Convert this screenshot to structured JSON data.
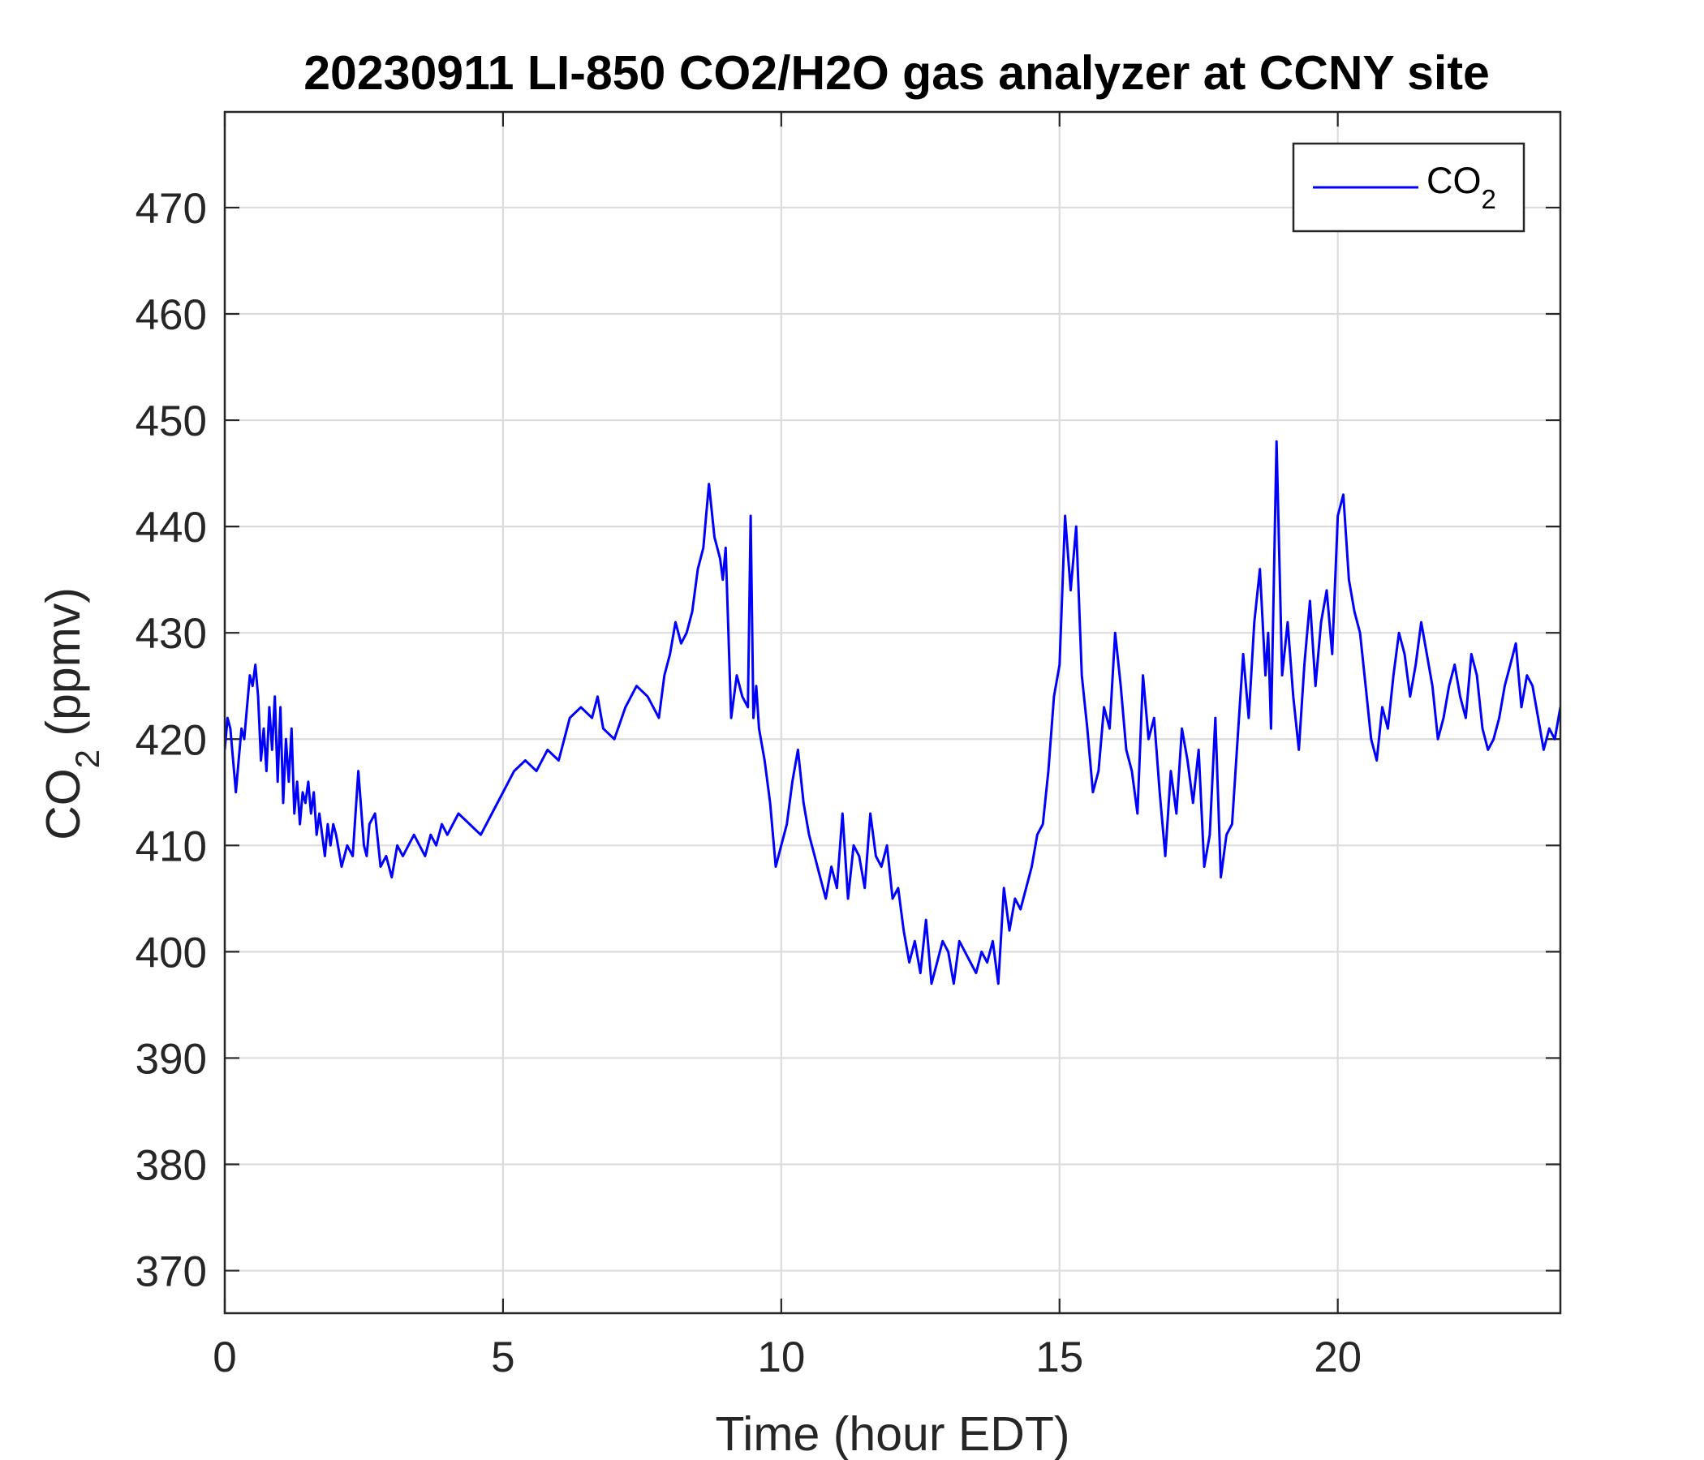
{
  "chart_data": {
    "type": "line",
    "title": "20230911 LI-850 CO2/H2O gas analyzer at CCNY site",
    "xlabel": "Time (hour EDT)",
    "ylabel": {
      "main": "CO",
      "sub": "2",
      "suffix": " (ppmv)"
    },
    "xlim": [
      0,
      24
    ],
    "ylim": [
      366,
      479
    ],
    "xticks": [
      0,
      5,
      10,
      15,
      20
    ],
    "yticks": [
      370,
      380,
      390,
      400,
      410,
      420,
      430,
      440,
      450,
      460,
      470
    ],
    "grid": true,
    "legend_position": "top-right",
    "colors": {
      "line": "#0000ff",
      "axes": "#262626",
      "grid": "#dcdcdc"
    },
    "series": [
      {
        "name": {
          "main": "CO",
          "sub": "2"
        },
        "x": [
          0.0,
          0.05,
          0.1,
          0.15,
          0.2,
          0.25,
          0.3,
          0.35,
          0.4,
          0.45,
          0.5,
          0.55,
          0.6,
          0.65,
          0.7,
          0.75,
          0.8,
          0.85,
          0.9,
          0.95,
          1.0,
          1.05,
          1.1,
          1.15,
          1.2,
          1.25,
          1.3,
          1.35,
          1.4,
          1.45,
          1.5,
          1.55,
          1.6,
          1.65,
          1.7,
          1.75,
          1.8,
          1.85,
          1.9,
          1.95,
          2.0,
          2.1,
          2.2,
          2.3,
          2.4,
          2.5,
          2.55,
          2.6,
          2.7,
          2.8,
          2.9,
          3.0,
          3.1,
          3.2,
          3.3,
          3.4,
          3.5,
          3.6,
          3.7,
          3.8,
          3.9,
          4.0,
          4.2,
          4.4,
          4.6,
          4.8,
          5.0,
          5.2,
          5.4,
          5.6,
          5.8,
          6.0,
          6.1,
          6.2,
          6.4,
          6.6,
          6.7,
          6.8,
          7.0,
          7.2,
          7.4,
          7.6,
          7.7,
          7.8,
          7.9,
          8.0,
          8.1,
          8.2,
          8.3,
          8.4,
          8.5,
          8.6,
          8.65,
          8.7,
          8.8,
          8.9,
          8.95,
          9.0,
          9.1,
          9.2,
          9.3,
          9.4,
          9.45,
          9.5,
          9.55,
          9.6,
          9.7,
          9.8,
          9.9,
          10.0,
          10.1,
          10.2,
          10.3,
          10.4,
          10.5,
          10.6,
          10.7,
          10.8,
          10.9,
          11.0,
          11.1,
          11.2,
          11.3,
          11.4,
          11.5,
          11.6,
          11.7,
          11.8,
          11.9,
          12.0,
          12.1,
          12.2,
          12.3,
          12.4,
          12.5,
          12.6,
          12.7,
          12.8,
          12.9,
          13.0,
          13.1,
          13.2,
          13.3,
          13.4,
          13.5,
          13.6,
          13.7,
          13.8,
          13.9,
          14.0,
          14.1,
          14.2,
          14.3,
          14.4,
          14.5,
          14.6,
          14.7,
          14.8,
          14.9,
          15.0,
          15.1,
          15.2,
          15.3,
          15.4,
          15.5,
          15.6,
          15.7,
          15.8,
          15.9,
          16.0,
          16.1,
          16.2,
          16.3,
          16.4,
          16.5,
          16.6,
          16.7,
          16.8,
          16.9,
          17.0,
          17.1,
          17.2,
          17.3,
          17.4,
          17.5,
          17.6,
          17.7,
          17.8,
          17.9,
          18.0,
          18.1,
          18.2,
          18.3,
          18.4,
          18.5,
          18.6,
          18.7,
          18.75,
          18.8,
          18.9,
          19.0,
          19.1,
          19.2,
          19.3,
          19.4,
          19.5,
          19.6,
          19.7,
          19.8,
          19.9,
          20.0,
          20.1,
          20.2,
          20.3,
          20.4,
          20.5,
          20.6,
          20.7,
          20.8,
          20.9,
          21.0,
          21.1,
          21.2,
          21.3,
          21.4,
          21.5,
          21.6,
          21.7,
          21.8,
          21.9,
          22.0,
          22.1,
          22.2,
          22.3,
          22.4,
          22.5,
          22.6,
          22.7,
          22.8,
          22.9,
          23.0,
          23.1,
          23.2,
          23.3,
          23.4,
          23.5,
          23.6,
          23.7,
          23.8,
          23.9,
          24.0
        ],
        "y": [
          419,
          422,
          421,
          418,
          415,
          418,
          421,
          420,
          423,
          426,
          425,
          427,
          424,
          418,
          421,
          417,
          423,
          419,
          424,
          416,
          423,
          414,
          420,
          416,
          421,
          413,
          416,
          412,
          415,
          414,
          416,
          413,
          415,
          411,
          413,
          411,
          409,
          412,
          410,
          412,
          411,
          408,
          410,
          409,
          417,
          410,
          409,
          412,
          413,
          408,
          409,
          407,
          410,
          409,
          410,
          411,
          410,
          409,
          411,
          410,
          412,
          411,
          413,
          412,
          411,
          413,
          415,
          417,
          418,
          417,
          419,
          418,
          420,
          422,
          423,
          422,
          424,
          421,
          420,
          423,
          425,
          424,
          423,
          422,
          426,
          428,
          431,
          429,
          430,
          432,
          436,
          438,
          441,
          444,
          439,
          437,
          435,
          438,
          422,
          426,
          424,
          423,
          441,
          422,
          425,
          421,
          418,
          414,
          408,
          410,
          412,
          416,
          419,
          414,
          411,
          409,
          407,
          405,
          408,
          406,
          413,
          405,
          410,
          409,
          406,
          413,
          409,
          408,
          410,
          405,
          406,
          402,
          399,
          401,
          398,
          403,
          397,
          399,
          401,
          400,
          397,
          401,
          400,
          399,
          398,
          400,
          399,
          401,
          397,
          406,
          402,
          405,
          404,
          406,
          408,
          411,
          412,
          417,
          424,
          427,
          441,
          434,
          440,
          426,
          421,
          415,
          417,
          423,
          421,
          430,
          425,
          419,
          417,
          413,
          426,
          420,
          422,
          415,
          409,
          417,
          413,
          421,
          418,
          414,
          419,
          408,
          411,
          422,
          407,
          411,
          412,
          420,
          428,
          422,
          431,
          436,
          426,
          430,
          421,
          448,
          426,
          431,
          424,
          419,
          427,
          433,
          425,
          431,
          434,
          428,
          441,
          443,
          435,
          432,
          430,
          425,
          420,
          418,
          423,
          421,
          426,
          430,
          428,
          424,
          427,
          431,
          428,
          425,
          420,
          422,
          425,
          427,
          424,
          422,
          428,
          426,
          421,
          419,
          420,
          422,
          425,
          427,
          429,
          423,
          426,
          425,
          422,
          419,
          421,
          420,
          423
        ]
      }
    ]
  }
}
